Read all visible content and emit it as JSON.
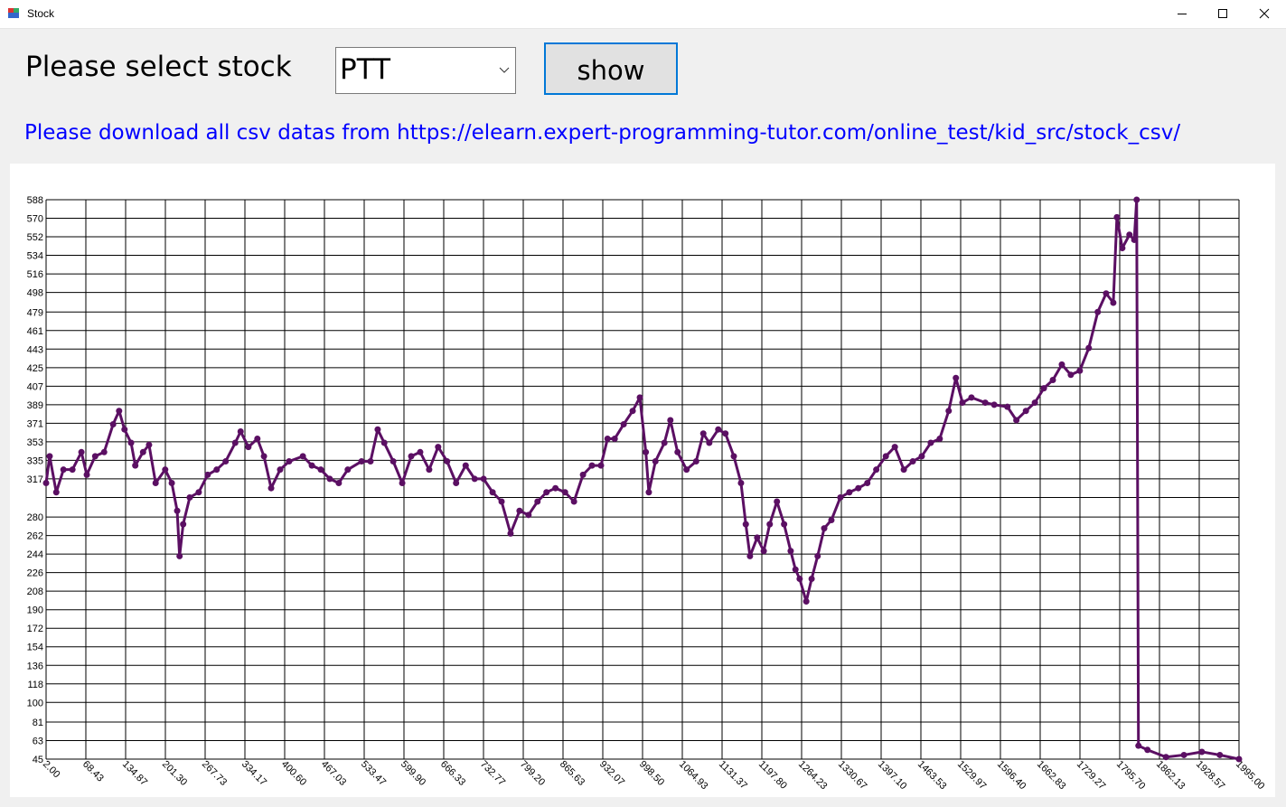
{
  "window": {
    "title": "Stock"
  },
  "form": {
    "prompt": "Please select stock",
    "stock_select": "PTT",
    "show_button": "show",
    "note": "Please download all csv datas from https://elearn.expert-programming-tutor.com/online_test/kid_src/stock_csv/"
  },
  "chart_data": {
    "type": "line",
    "color": "#5b0f63",
    "markers": true,
    "grid": true,
    "x": [
      2,
      8,
      19,
      31,
      46,
      61,
      70,
      84,
      99,
      114,
      124,
      133,
      144,
      151,
      164,
      174,
      185,
      201,
      212,
      221,
      225,
      231,
      242,
      257,
      272,
      287,
      302,
      318,
      327,
      340,
      355,
      366,
      378,
      393,
      408,
      431,
      446,
      461,
      476,
      491,
      506,
      529,
      544,
      556,
      567,
      582,
      597,
      612,
      627,
      642,
      657,
      672,
      687,
      703,
      718,
      733,
      748,
      763,
      778,
      793,
      808,
      823,
      838,
      853,
      869,
      884,
      899,
      914,
      929,
      940,
      952,
      967,
      982,
      994,
      1004,
      1009,
      1020,
      1035,
      1045,
      1057,
      1072,
      1088,
      1100,
      1110,
      1125,
      1137,
      1151,
      1163,
      1171,
      1178,
      1190,
      1201,
      1211,
      1223,
      1235,
      1246,
      1254,
      1261,
      1272,
      1281,
      1291,
      1302,
      1314,
      1329,
      1344,
      1359,
      1374,
      1389,
      1405,
      1420,
      1435,
      1450,
      1465,
      1480,
      1495,
      1510,
      1522,
      1533,
      1548,
      1571,
      1586,
      1608,
      1623,
      1639,
      1654,
      1669,
      1684,
      1699,
      1714,
      1729,
      1744,
      1759,
      1773,
      1785,
      1791,
      1800,
      1812,
      1820,
      1824,
      1827,
      1842,
      1873,
      1903,
      1933,
      1963,
      1995
    ],
    "values": [
      313,
      339,
      304,
      326,
      326,
      343,
      321,
      339,
      343,
      370,
      383,
      365,
      352,
      330,
      343,
      350,
      313,
      326,
      313,
      286,
      242,
      273,
      299,
      304,
      321,
      326,
      334,
      352,
      363,
      348,
      356,
      339,
      308,
      326,
      334,
      339,
      330,
      326,
      317,
      313,
      326,
      334,
      334,
      365,
      352,
      334,
      313,
      339,
      343,
      326,
      348,
      334,
      313,
      330,
      317,
      317,
      304,
      295,
      264,
      286,
      282,
      295,
      304,
      308,
      304,
      295,
      321,
      330,
      330,
      356,
      356,
      370,
      383,
      396,
      343,
      304,
      334,
      352,
      374,
      343,
      326,
      334,
      361,
      352,
      365,
      361,
      339,
      313,
      273,
      242,
      260,
      247,
      273,
      295,
      273,
      247,
      229,
      220,
      198,
      220,
      242,
      269,
      277,
      299,
      304,
      308,
      313,
      326,
      339,
      348,
      326,
      334,
      339,
      352,
      356,
      383,
      415,
      391,
      396,
      391,
      389,
      387,
      374,
      383,
      391,
      405,
      413,
      428,
      418,
      422,
      444,
      479,
      497,
      488,
      571,
      541,
      554,
      549,
      588,
      58,
      54,
      47,
      49,
      52,
      49,
      45
    ],
    "xlim": [
      2,
      1995
    ],
    "ylim": [
      45,
      588
    ],
    "xticks": [
      {
        "value": 2,
        "label": "2.00"
      },
      {
        "value": 68.43,
        "label": "68.43"
      },
      {
        "value": 134.87,
        "label": "134.87"
      },
      {
        "value": 201.3,
        "label": "201.30"
      },
      {
        "value": 267.73,
        "label": "267.73"
      },
      {
        "value": 334.17,
        "label": "334.17"
      },
      {
        "value": 400.6,
        "label": "400.60"
      },
      {
        "value": 467.03,
        "label": "467.03"
      },
      {
        "value": 533.47,
        "label": "533.47"
      },
      {
        "value": 599.9,
        "label": "599.90"
      },
      {
        "value": 666.33,
        "label": "666.33"
      },
      {
        "value": 732.77,
        "label": "732.77"
      },
      {
        "value": 799.2,
        "label": "799.20"
      },
      {
        "value": 865.63,
        "label": "865.63"
      },
      {
        "value": 932.07,
        "label": "932.07"
      },
      {
        "value": 998.5,
        "label": "998.50"
      },
      {
        "value": 1064.93,
        "label": "1064.93"
      },
      {
        "value": 1131.37,
        "label": "1131.37"
      },
      {
        "value": 1197.8,
        "label": "1197.80"
      },
      {
        "value": 1264.23,
        "label": "1264.23"
      },
      {
        "value": 1330.67,
        "label": "1330.67"
      },
      {
        "value": 1397.1,
        "label": "1397.10"
      },
      {
        "value": 1463.53,
        "label": "1463.53"
      },
      {
        "value": 1529.97,
        "label": "1529.97"
      },
      {
        "value": 1596.4,
        "label": "1596.40"
      },
      {
        "value": 1662.83,
        "label": "1662.83"
      },
      {
        "value": 1729.27,
        "label": "1729.27"
      },
      {
        "value": 1795.7,
        "label": "1795.70"
      },
      {
        "value": 1862.13,
        "label": "1862.13"
      },
      {
        "value": 1928.57,
        "label": "1928.57"
      },
      {
        "value": 1995,
        "label": "1995.00"
      }
    ],
    "yticks": [
      45,
      63,
      81,
      100,
      118,
      136,
      154,
      172,
      190,
      208,
      226,
      244,
      262,
      280,
      {
        "value": 299,
        "label": null
      },
      317,
      335,
      353,
      371,
      389,
      407,
      425,
      443,
      461,
      479,
      498,
      516,
      534,
      552,
      570,
      588
    ]
  }
}
